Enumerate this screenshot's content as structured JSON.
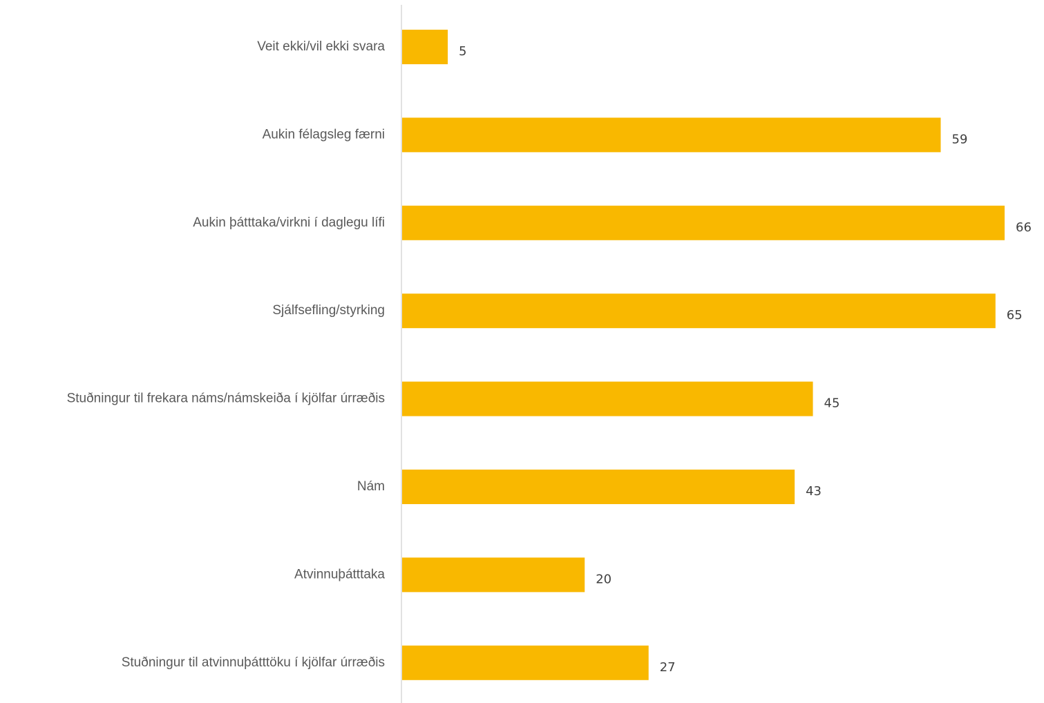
{
  "chart_data": {
    "type": "bar",
    "orientation": "horizontal",
    "categories": [
      "Veit ekki/vil ekki svara",
      "Aukin félagsleg færni",
      "Aukin þátttaka/virkni í daglegu lífi",
      "Sjálfsefling/styrking",
      "Stuðningur til frekara náms/námskeiða í kjölfar úrræðis",
      "Nám",
      "Atvinnuþátttaka",
      "Stuðningur til atvinnuþátttöku í kjölfar úrræðis"
    ],
    "values": [
      5,
      59,
      66,
      65,
      45,
      43,
      20,
      27
    ],
    "title": "",
    "xlabel": "",
    "ylabel": "",
    "xlim": [
      0,
      66
    ],
    "grid": false,
    "legend": "none",
    "data_labels": true,
    "colors": {
      "bar": "#F9B800",
      "axis": "#D9D9D9",
      "category_text": "#595959",
      "value_text": "#404040"
    }
  }
}
